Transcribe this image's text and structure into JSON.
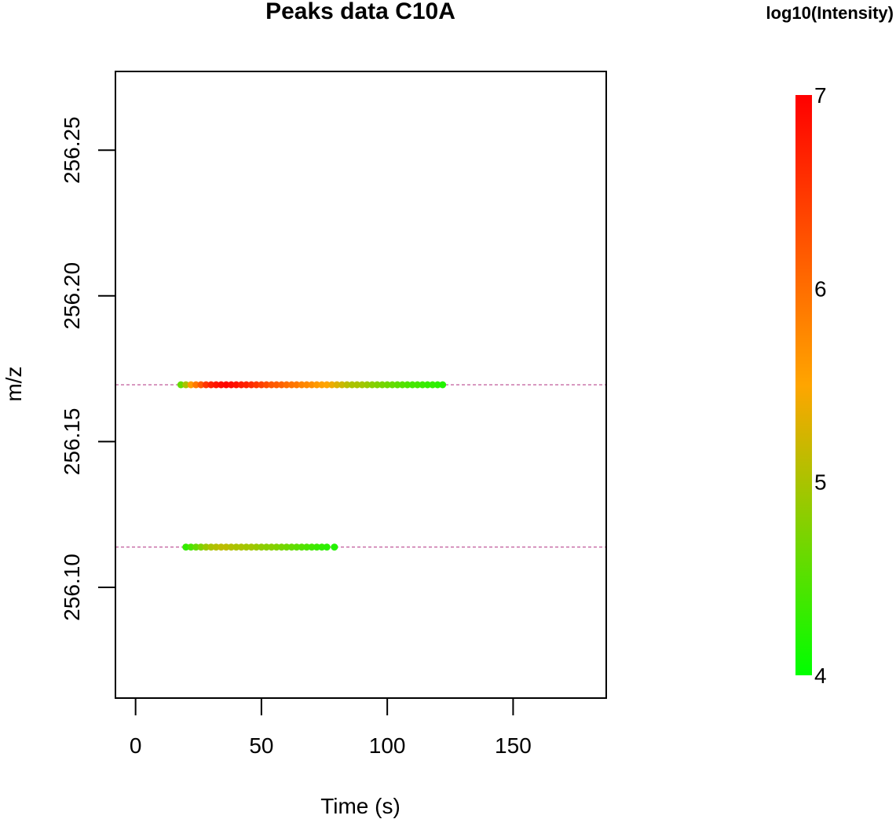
{
  "chart_data": {
    "type": "scatter",
    "title": "Peaks data C10A",
    "xlabel": "Time (s)",
    "ylabel": "m/z",
    "xlim": [
      -8,
      187
    ],
    "ylim": [
      256.062,
      256.277
    ],
    "xticks": [
      0,
      50,
      100,
      150
    ],
    "xtick_labels": [
      "0",
      "50",
      "100",
      "150"
    ],
    "yticks": [
      256.1,
      256.15,
      256.2,
      256.25
    ],
    "ytick_labels": [
      "256.10",
      "256.15",
      "256.20",
      "256.25"
    ],
    "reference_lines": [
      256.1695,
      256.1138
    ],
    "reference_line_color": "#b03080",
    "color_scale": {
      "title": "log10(Intensity)",
      "min": 4,
      "max": 7,
      "ticks": [
        4,
        5,
        6,
        7
      ],
      "tick_labels": [
        "4",
        "5",
        "6",
        "7"
      ],
      "colors": [
        "#00ff00",
        "#ffa500",
        "#ff0000"
      ]
    },
    "series": [
      {
        "mz": 256.1695,
        "points": [
          [
            18,
            4.6
          ],
          [
            20,
            5.0
          ],
          [
            22,
            5.6
          ],
          [
            24,
            5.9
          ],
          [
            26,
            6.2
          ],
          [
            28,
            6.5
          ],
          [
            30,
            6.7
          ],
          [
            32,
            6.8
          ],
          [
            34,
            6.9
          ],
          [
            36,
            6.95
          ],
          [
            38,
            6.9
          ],
          [
            40,
            6.85
          ],
          [
            42,
            6.75
          ],
          [
            44,
            6.7
          ],
          [
            46,
            6.6
          ],
          [
            48,
            6.5
          ],
          [
            50,
            6.4
          ],
          [
            52,
            6.3
          ],
          [
            54,
            6.2
          ],
          [
            56,
            6.15
          ],
          [
            58,
            6.1
          ],
          [
            60,
            6.0
          ],
          [
            62,
            5.95
          ],
          [
            64,
            5.9
          ],
          [
            66,
            5.8
          ],
          [
            68,
            5.75
          ],
          [
            70,
            5.7
          ],
          [
            72,
            5.6
          ],
          [
            74,
            5.55
          ],
          [
            76,
            5.5
          ],
          [
            78,
            5.4
          ],
          [
            80,
            5.3
          ],
          [
            82,
            5.2
          ],
          [
            84,
            5.1
          ],
          [
            86,
            5.0
          ],
          [
            88,
            5.0
          ],
          [
            90,
            4.95
          ],
          [
            92,
            4.9
          ],
          [
            94,
            4.8
          ],
          [
            96,
            4.75
          ],
          [
            98,
            4.7
          ],
          [
            100,
            4.65
          ],
          [
            102,
            4.6
          ],
          [
            104,
            4.55
          ],
          [
            106,
            4.5
          ],
          [
            108,
            4.45
          ],
          [
            110,
            4.4
          ],
          [
            112,
            4.4
          ],
          [
            114,
            4.35
          ],
          [
            116,
            4.3
          ],
          [
            118,
            4.3
          ],
          [
            120,
            4.25
          ],
          [
            122,
            4.2
          ]
        ]
      },
      {
        "mz": 256.1138,
        "points": [
          [
            20,
            4.3
          ],
          [
            22,
            4.45
          ],
          [
            24,
            4.6
          ],
          [
            26,
            4.75
          ],
          [
            28,
            4.9
          ],
          [
            30,
            5.0
          ],
          [
            32,
            5.05
          ],
          [
            34,
            5.1
          ],
          [
            36,
            5.1
          ],
          [
            38,
            5.05
          ],
          [
            40,
            5.0
          ],
          [
            42,
            5.0
          ],
          [
            44,
            4.95
          ],
          [
            46,
            4.95
          ],
          [
            48,
            4.9
          ],
          [
            50,
            4.85
          ],
          [
            52,
            4.8
          ],
          [
            54,
            4.8
          ],
          [
            56,
            4.75
          ],
          [
            58,
            4.7
          ],
          [
            60,
            4.65
          ],
          [
            62,
            4.6
          ],
          [
            64,
            4.55
          ],
          [
            66,
            4.5
          ],
          [
            68,
            4.45
          ],
          [
            70,
            4.4
          ],
          [
            72,
            4.35
          ],
          [
            74,
            4.3
          ],
          [
            76,
            4.25
          ],
          [
            79,
            4.2
          ]
        ]
      }
    ]
  }
}
